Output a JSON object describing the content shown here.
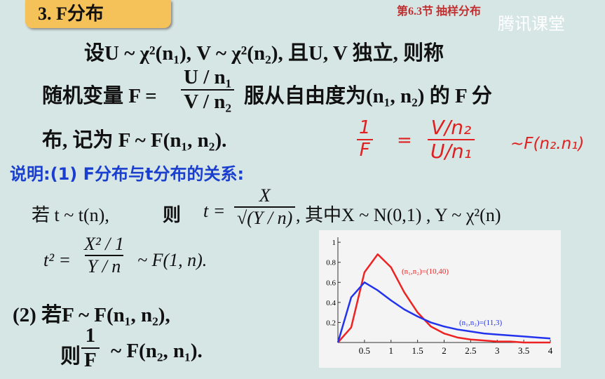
{
  "header": {
    "title": "3.   F分布",
    "section": "第6.3节 抽样分布",
    "watermark": "腾讯课堂"
  },
  "definition": {
    "line1": "设U ~ χ²(n₁), V ~ χ²(n₂), 且U, V 独立, 则称",
    "line2_lead": "随机变量 F =",
    "fraction_num": "U / n₁",
    "fraction_den": "V / n₂",
    "line2_tail": "服从自由度为(n₁, n₂) 的 F 分",
    "line3": "布, 记为 F ~ F(n₁, n₂)."
  },
  "handwritten": {
    "num_left": "1",
    "den_left": "F",
    "equals": "=",
    "num_right": "V/n₂",
    "den_right": "U/n₁",
    "tail": "~F(n₂.n₁)"
  },
  "note": {
    "heading": "说明:(1) F分布与t分布的关系:",
    "t_lead": "若 t ~ t(n),",
    "then": "则",
    "t_eq": "t =",
    "t_num": "X",
    "t_den": "√(Y / n)",
    "t_tail": ", 其中X ~ N(0,1) , Y ~ χ²(n)",
    "t2_eq": "t² =",
    "t2_num": "X² / 1",
    "t2_den": "Y / n",
    "t2_tail": "~ F(1, n).",
    "item2_lead": "(2) 若F ~ F(n₁, n₂),",
    "item2_then": "则",
    "recip_num": "1",
    "recip_den": "F",
    "recip_tail": "~ F(n₂, n₁)."
  },
  "chart_data": {
    "type": "line",
    "x": [
      0,
      0.25,
      0.5,
      0.75,
      1,
      1.25,
      1.5,
      1.75,
      2,
      2.25,
      2.5,
      2.75,
      3,
      3.25,
      3.5,
      3.75,
      4
    ],
    "series": [
      {
        "name": "(n₁,n₂)=(10,40)",
        "color": "#ee2222",
        "values": [
          0,
          0.15,
          0.7,
          0.88,
          0.75,
          0.5,
          0.3,
          0.16,
          0.09,
          0.05,
          0.03,
          0.02,
          0.01,
          0.01,
          0,
          0,
          0
        ]
      },
      {
        "name": "(n₁,n₂)=(11,3)",
        "color": "#2233ee",
        "values": [
          0,
          0.45,
          0.6,
          0.52,
          0.42,
          0.33,
          0.26,
          0.2,
          0.16,
          0.13,
          0.11,
          0.09,
          0.08,
          0.07,
          0.06,
          0.05,
          0.04
        ]
      }
    ],
    "xlim": [
      0,
      4
    ],
    "ylim": [
      0,
      1.05
    ],
    "xticks": [
      0.5,
      1,
      1.5,
      2,
      2.5,
      3,
      3.5,
      4
    ],
    "yticks": [
      0.2,
      0.4,
      0.6,
      0.8,
      1
    ]
  }
}
